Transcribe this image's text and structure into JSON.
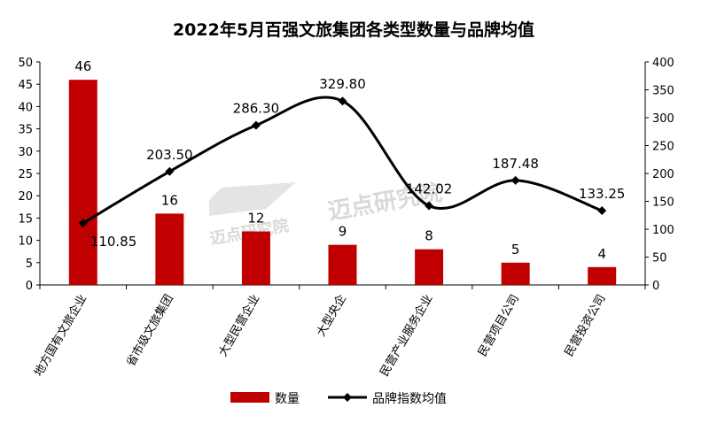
{
  "chart_data": {
    "type": "bar+line",
    "title": "2022年5月百强文旅集团各类型数量与品牌均值",
    "categories": [
      "地方国有文旅企业",
      "省市级文旅集团",
      "大型民营企业",
      "大型央企",
      "民营产业服务企业",
      "民营项目公司",
      "民营投资公司"
    ],
    "series": [
      {
        "name": "数量",
        "type": "bar",
        "axis": "left",
        "color": "#c00000",
        "values": [
          46,
          16,
          12,
          9,
          8,
          5,
          4
        ],
        "labels": [
          "46",
          "16",
          "12",
          "9",
          "8",
          "5",
          "4"
        ]
      },
      {
        "name": "品牌指数均值",
        "type": "line",
        "axis": "right",
        "color": "#000000",
        "smooth": true,
        "values": [
          110.85,
          203.5,
          286.3,
          329.8,
          142.02,
          187.48,
          133.25
        ],
        "labels": [
          "110.85",
          "203.50",
          "286.30",
          "329.80",
          "142.02",
          "187.48",
          "133.25"
        ]
      }
    ],
    "y_left": {
      "min": 0,
      "max": 50,
      "ticks": [
        "0",
        "5",
        "10",
        "15",
        "20",
        "25",
        "30",
        "35",
        "40",
        "45",
        "50"
      ]
    },
    "y_right": {
      "min": 0,
      "max": 400,
      "ticks": [
        "0",
        "50",
        "100",
        "150",
        "200",
        "250",
        "300",
        "350",
        "400"
      ]
    },
    "grid": false,
    "legend_position": "bottom"
  },
  "watermark": {
    "main": "迈点研究院",
    "small": "迈点研究院"
  }
}
